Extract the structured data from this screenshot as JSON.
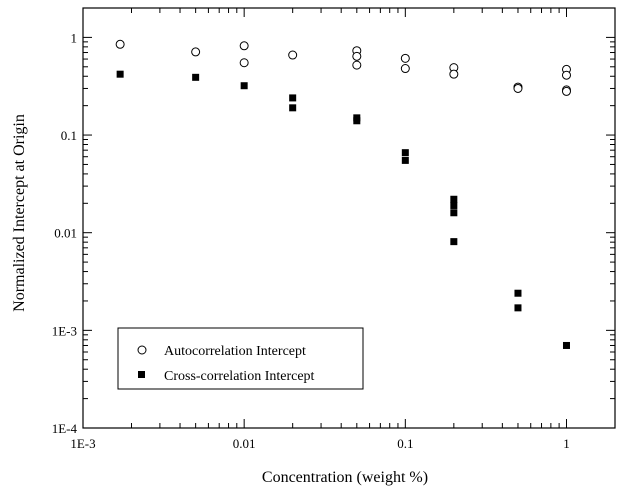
{
  "chart_data": {
    "type": "scatter",
    "x_scale": "log",
    "y_scale": "log",
    "xlabel": "Concentration (weight %)",
    "ylabel": "Normalized Intercept at Origin",
    "xlim": [
      0.001,
      2
    ],
    "ylim": [
      0.0001,
      2
    ],
    "grid": false,
    "legend_position": "bottom-left",
    "x_ticks": [
      {
        "value": 0.001,
        "label": "1E-3"
      },
      {
        "value": 0.01,
        "label": "0.01"
      },
      {
        "value": 0.1,
        "label": "0.1"
      },
      {
        "value": 1,
        "label": "1"
      }
    ],
    "y_ticks": [
      {
        "value": 0.0001,
        "label": "1E-4"
      },
      {
        "value": 0.001,
        "label": "1E-3"
      },
      {
        "value": 0.01,
        "label": "0.01"
      },
      {
        "value": 0.1,
        "label": "0.1"
      },
      {
        "value": 1,
        "label": "1"
      }
    ],
    "series": [
      {
        "name": "Autocorrelation Intercept",
        "marker": "open-circle",
        "points": [
          [
            0.0017,
            0.85
          ],
          [
            0.005,
            0.71
          ],
          [
            0.01,
            0.82
          ],
          [
            0.01,
            0.55
          ],
          [
            0.02,
            0.66
          ],
          [
            0.05,
            0.73
          ],
          [
            0.05,
            0.64
          ],
          [
            0.05,
            0.52
          ],
          [
            0.1,
            0.61
          ],
          [
            0.1,
            0.48
          ],
          [
            0.2,
            0.49
          ],
          [
            0.2,
            0.42
          ],
          [
            0.5,
            0.31
          ],
          [
            0.5,
            0.3
          ],
          [
            1,
            0.47
          ],
          [
            1,
            0.41
          ],
          [
            1,
            0.29
          ],
          [
            1,
            0.28
          ]
        ]
      },
      {
        "name": "Cross-correlation Intercept",
        "marker": "filled-square",
        "points": [
          [
            0.0017,
            0.42
          ],
          [
            0.005,
            0.39
          ],
          [
            0.01,
            0.32
          ],
          [
            0.02,
            0.24
          ],
          [
            0.02,
            0.19
          ],
          [
            0.05,
            0.15
          ],
          [
            0.05,
            0.14
          ],
          [
            0.1,
            0.066
          ],
          [
            0.1,
            0.055
          ],
          [
            0.2,
            0.022
          ],
          [
            0.2,
            0.019
          ],
          [
            0.2,
            0.016
          ],
          [
            0.2,
            0.0081
          ],
          [
            0.5,
            0.0024
          ],
          [
            0.5,
            0.0017
          ],
          [
            1,
            0.0007
          ]
        ]
      }
    ]
  }
}
